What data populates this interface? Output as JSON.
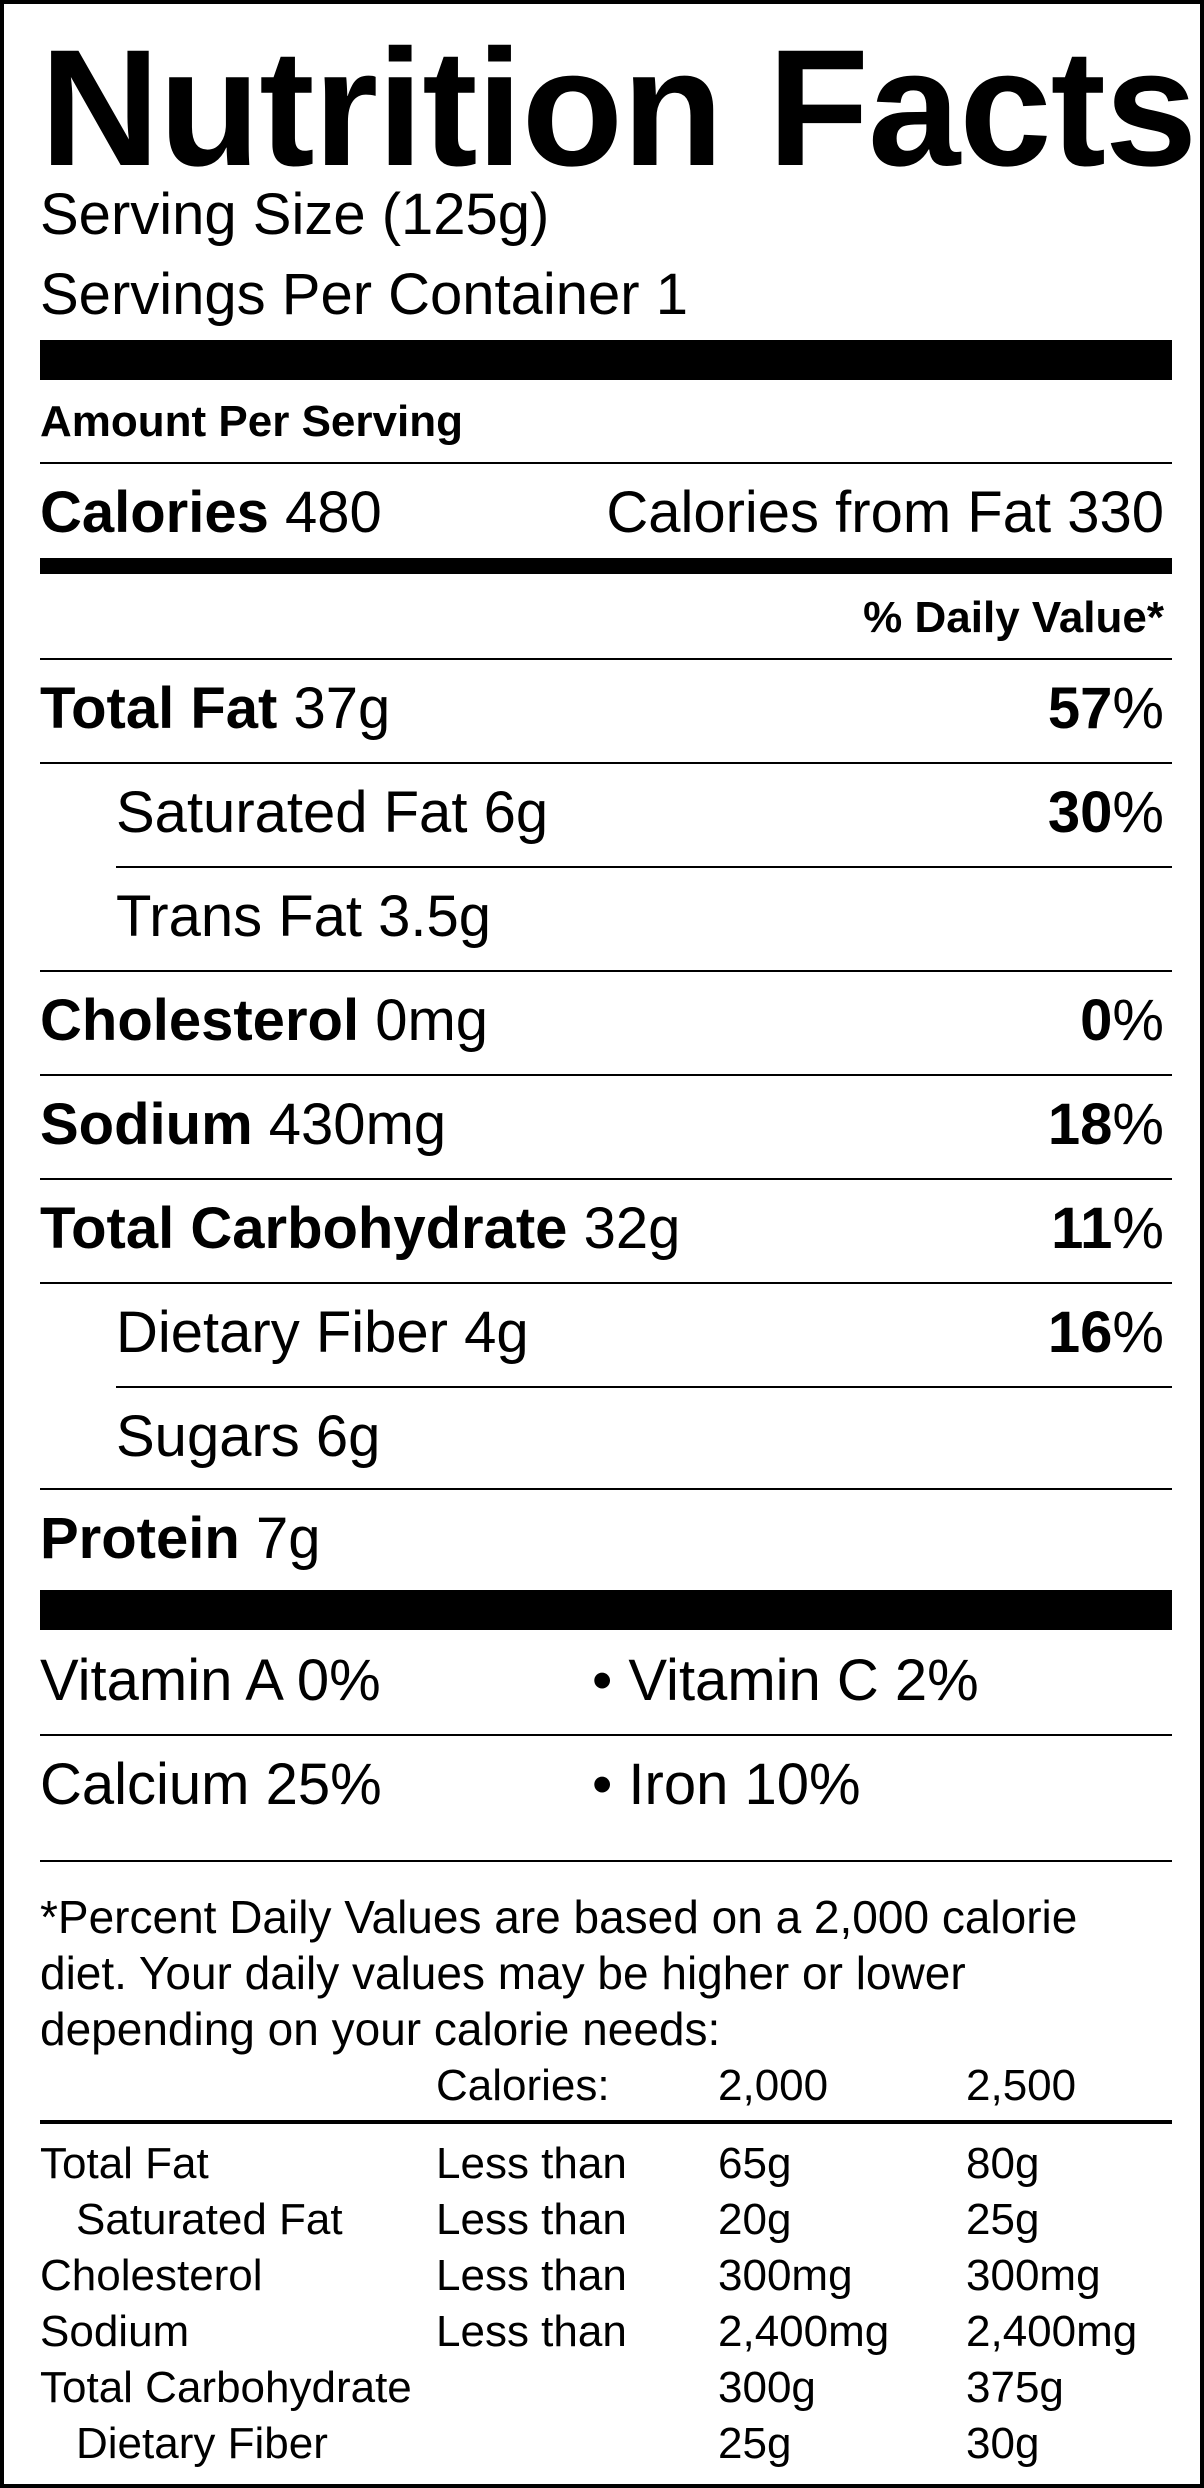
{
  "title": "Nutrition Facts",
  "serving_size": "Serving Size (125g)",
  "servings_per_container": "Servings Per Container 1",
  "amount_per_serving": "Amount Per Serving",
  "calories": {
    "label": "Calories",
    "value": "480",
    "from_fat_label": "Calories from Fat",
    "from_fat_value": "330"
  },
  "daily_value_header": "% Daily Value*",
  "nutrients": [
    {
      "label": "Total Fat",
      "amount": "37g",
      "dv_num": "57",
      "dv_pct": "%"
    },
    {
      "label": "Saturated Fat",
      "amount": "6g",
      "dv_num": "30",
      "dv_pct": "%"
    },
    {
      "label": "Trans Fat",
      "amount": "3.5g"
    },
    {
      "label": "Cholesterol",
      "amount": "0mg",
      "dv_num": "0",
      "dv_pct": "%"
    },
    {
      "label": "Sodium",
      "amount": "430mg",
      "dv_num": "18",
      "dv_pct": "%"
    },
    {
      "label": "Total Carbohydrate",
      "amount": "32g",
      "dv_num": "11",
      "dv_pct": "%"
    },
    {
      "label": "Dietary Fiber",
      "amount": "4g",
      "dv_num": "16",
      "dv_pct": "%"
    },
    {
      "label": "Sugars",
      "amount": "6g"
    },
    {
      "label": "Protein",
      "amount": "7g"
    }
  ],
  "vitamins": [
    {
      "text": "Vitamin A 0%"
    },
    {
      "text": "• Vitamin C 2%"
    },
    {
      "text": "Calcium 25%"
    },
    {
      "text": "• Iron 10%"
    }
  ],
  "footnote": {
    "line1": "*Percent Daily Values are based on a 2,000 calorie",
    "line2": "diet. Your daily values may be higher or lower",
    "line3": "depending on your calorie needs:",
    "header": [
      "Calories:",
      "2,000",
      "2,500"
    ],
    "rows": [
      [
        "Total Fat",
        "Less than",
        "65g",
        "80g"
      ],
      [
        "Saturated Fat",
        "Less than",
        "20g",
        "25g"
      ],
      [
        "Cholesterol",
        "Less than",
        "300mg",
        "300mg"
      ],
      [
        "Sodium",
        "Less than",
        "2,400mg",
        "2,400mg"
      ],
      [
        "Total Carbohydrate",
        "",
        "300g",
        "375g"
      ],
      [
        "Dietary Fiber",
        "",
        "25g",
        "30g"
      ]
    ]
  }
}
